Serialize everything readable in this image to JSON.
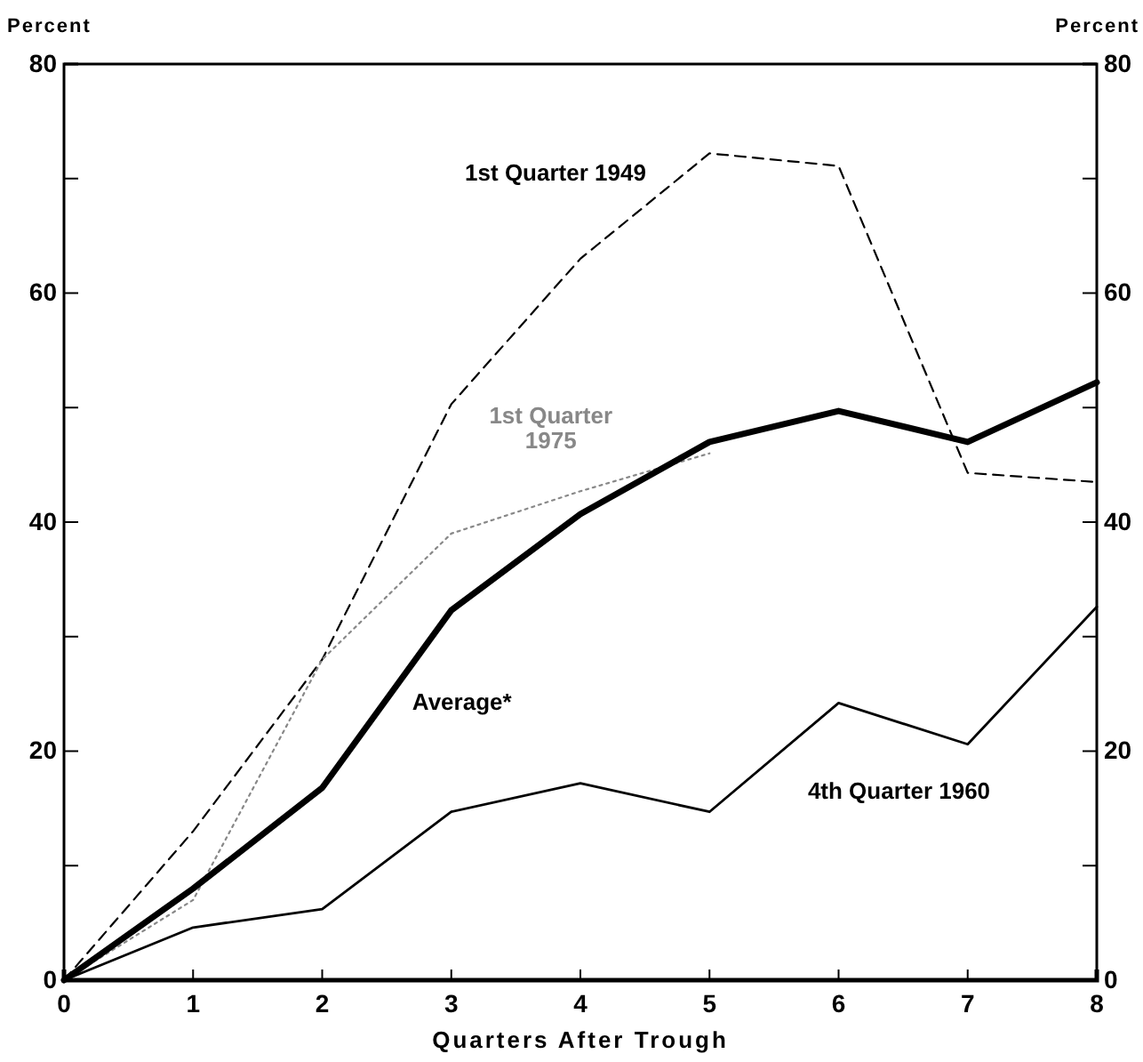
{
  "chart_data": {
    "type": "line",
    "xlabel": "Quarters After Trough",
    "ylabel": "Percent",
    "y2label": "Percent",
    "x": [
      0,
      1,
      2,
      3,
      4,
      5,
      6,
      7,
      8
    ],
    "xlim": [
      0,
      8
    ],
    "xticks": [
      0,
      1,
      2,
      3,
      4,
      5,
      6,
      7,
      8
    ],
    "ylim": [
      0,
      80
    ],
    "yticks": [
      0,
      {
        "value": 10,
        "label": null
      },
      20,
      {
        "value": 30,
        "label": null
      },
      40,
      {
        "value": 50,
        "label": null
      },
      60,
      {
        "value": 70,
        "label": null
      },
      80
    ],
    "y2lim": [
      0,
      80
    ],
    "y2ticks": [
      0,
      {
        "value": 10,
        "label": null
      },
      20,
      {
        "value": 30,
        "label": null
      },
      40,
      {
        "value": 50,
        "label": null
      },
      60,
      {
        "value": 70,
        "label": null
      },
      80
    ],
    "grid": false,
    "marker": "none",
    "series": [
      {
        "name": "1st Quarter 1949",
        "color": "#000000",
        "line_style": "dashed",
        "values": [
          0,
          13,
          28,
          50.3,
          63,
          72.2,
          71.1,
          44.3,
          43.5
        ]
      },
      {
        "name": "1st Quarter 1975",
        "color": "#888888",
        "line_style": "dotted",
        "values": [
          0,
          7,
          28,
          39,
          42.7,
          46,
          null,
          null,
          null
        ]
      },
      {
        "name": "Average*",
        "color": "#000000",
        "line_style": "solid",
        "values": [
          0,
          8,
          16.8,
          32.3,
          40.7,
          47,
          49.7,
          47,
          52.2
        ]
      },
      {
        "name": "4th Quarter 1960",
        "color": "#000000",
        "line_style": "solid",
        "values": [
          0,
          4.6,
          6.2,
          14.7,
          17.2,
          14.7,
          24.2,
          20.6,
          32.6
        ]
      }
    ]
  }
}
